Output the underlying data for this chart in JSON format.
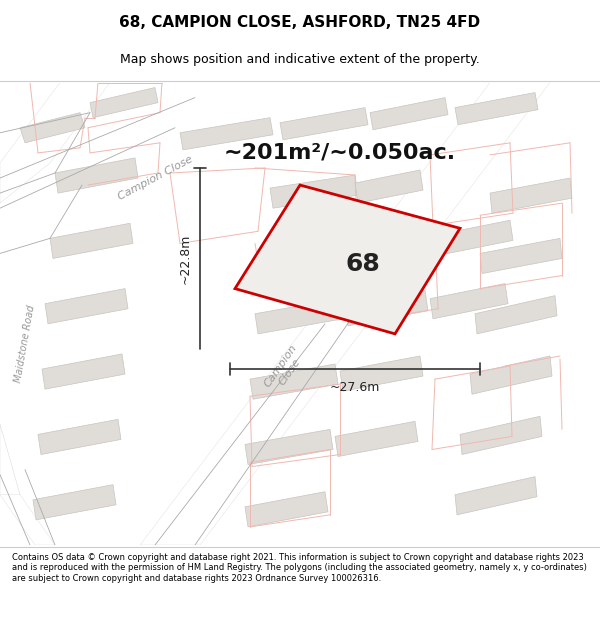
{
  "title": "68, CAMPION CLOSE, ASHFORD, TN25 4FD",
  "subtitle": "Map shows position and indicative extent of the property.",
  "area_text": "~201m²/~0.050ac.",
  "plot_number": "68",
  "dim_width": "~27.6m",
  "dim_height": "~22.8m",
  "footer": "Contains OS data © Crown copyright and database right 2021. This information is subject to Crown copyright and database rights 2023 and is reproduced with the permission of HM Land Registry. The polygons (including the associated geometry, namely x, y co-ordinates) are subject to Crown copyright and database rights 2023 Ordnance Survey 100026316.",
  "map_bg": "#f5f3f0",
  "plot_fill": "#f0eeeb",
  "plot_edge": "#cc0000",
  "building_fill": "#e0ddd8",
  "building_edge": "#c8c5c0",
  "road_fill": "#ffffff",
  "light_red": "#f0b8b0",
  "gray_line": "#aaaaaa",
  "street_color": "#999999",
  "title_size": 11,
  "subtitle_size": 9,
  "area_size": 16,
  "plot_num_size": 18,
  "dim_size": 9,
  "street_size": 8,
  "footer_size": 6
}
